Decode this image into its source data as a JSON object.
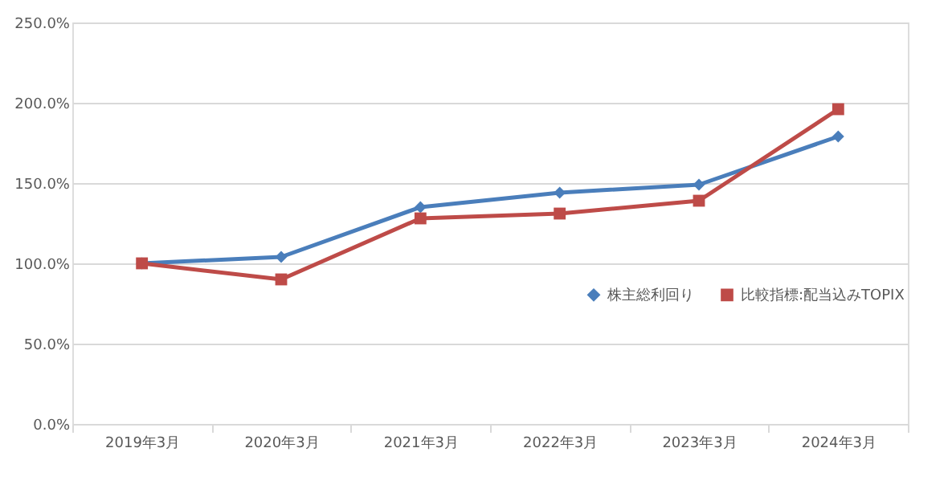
{
  "chart_data": {
    "type": "line",
    "categories": [
      "2019年3月",
      "2020年3月",
      "2021年3月",
      "2022年3月",
      "2023年3月",
      "2024年3月"
    ],
    "series": [
      {
        "name": "株主総利回り",
        "color": "#4a7ebb",
        "marker": "diamond",
        "values": [
          100,
          104,
          135,
          144,
          149,
          179
        ]
      },
      {
        "name": "比較指標:配当込みTOPIX",
        "color": "#be4b48",
        "marker": "square",
        "values": [
          100,
          90,
          128,
          131,
          139,
          196
        ]
      }
    ],
    "ylim": [
      0,
      250
    ],
    "yticks": [
      {
        "value": 0,
        "label": "0.0%"
      },
      {
        "value": 50,
        "label": "50.0%"
      },
      {
        "value": 100,
        "label": "100.0%"
      },
      {
        "value": 150,
        "label": "150.0%"
      },
      {
        "value": 200,
        "label": "200.0%"
      },
      {
        "value": 250,
        "label": "250.0%"
      }
    ],
    "grid": "y",
    "legend": "right",
    "line_style": "solid"
  }
}
